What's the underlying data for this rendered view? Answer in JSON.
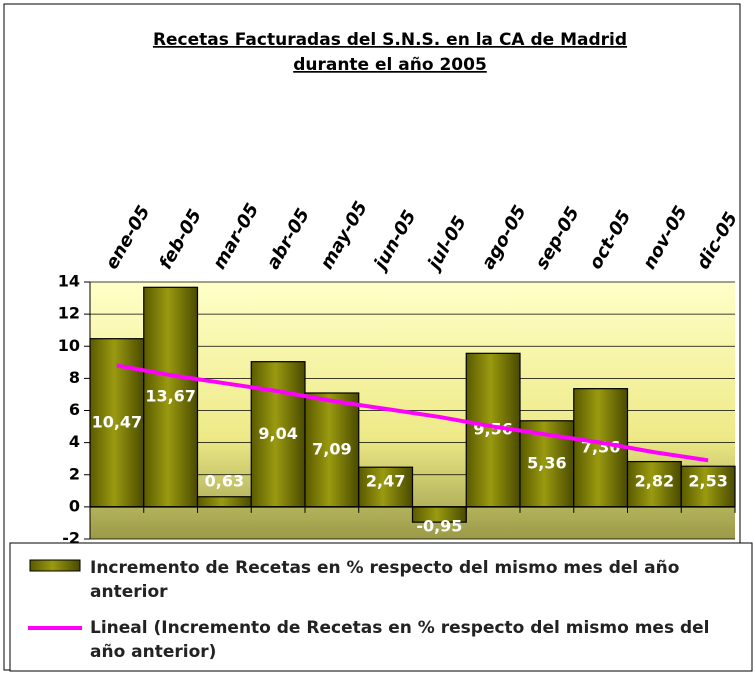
{
  "chart_data": {
    "type": "bar",
    "title": "Recetas Facturadas del S.N.S. en la CA de Madrid",
    "subtitle": "durante el año 2005",
    "categories": [
      "ene-05",
      "feb-05",
      "mar-05",
      "abr-05",
      "may-05",
      "jun-05",
      "jul-05",
      "ago-05",
      "sep-05",
      "oct-05",
      "nov-05",
      "dic-05"
    ],
    "series": [
      {
        "name": "Incremento de Recetas en % respecto del mismo mes del año anterior",
        "color": "#808000",
        "values": [
          10.47,
          13.67,
          0.63,
          9.04,
          7.09,
          2.47,
          -0.95,
          9.56,
          5.36,
          7.36,
          2.82,
          2.53
        ],
        "value_labels": [
          "10,47",
          "13,67",
          "0,63",
          "9,04",
          "7,09",
          "2,47",
          "-0,95",
          "9,56",
          "5,36",
          "7,36",
          "2,82",
          "2,53"
        ]
      },
      {
        "name": "Lineal (Incremento de Recetas en % respecto del mismo mes del año anterior)",
        "color": "#ff00ff",
        "type": "line",
        "values": [
          8.8,
          8.2,
          7.7,
          7.2,
          6.6,
          6.1,
          5.6,
          5.0,
          4.5,
          4.0,
          3.4,
          2.9
        ]
      }
    ],
    "ylim": [
      -2,
      14
    ],
    "yticks": [
      -2,
      0,
      2,
      4,
      6,
      8,
      10,
      12,
      14
    ],
    "grid": true,
    "legend": "bottom"
  }
}
